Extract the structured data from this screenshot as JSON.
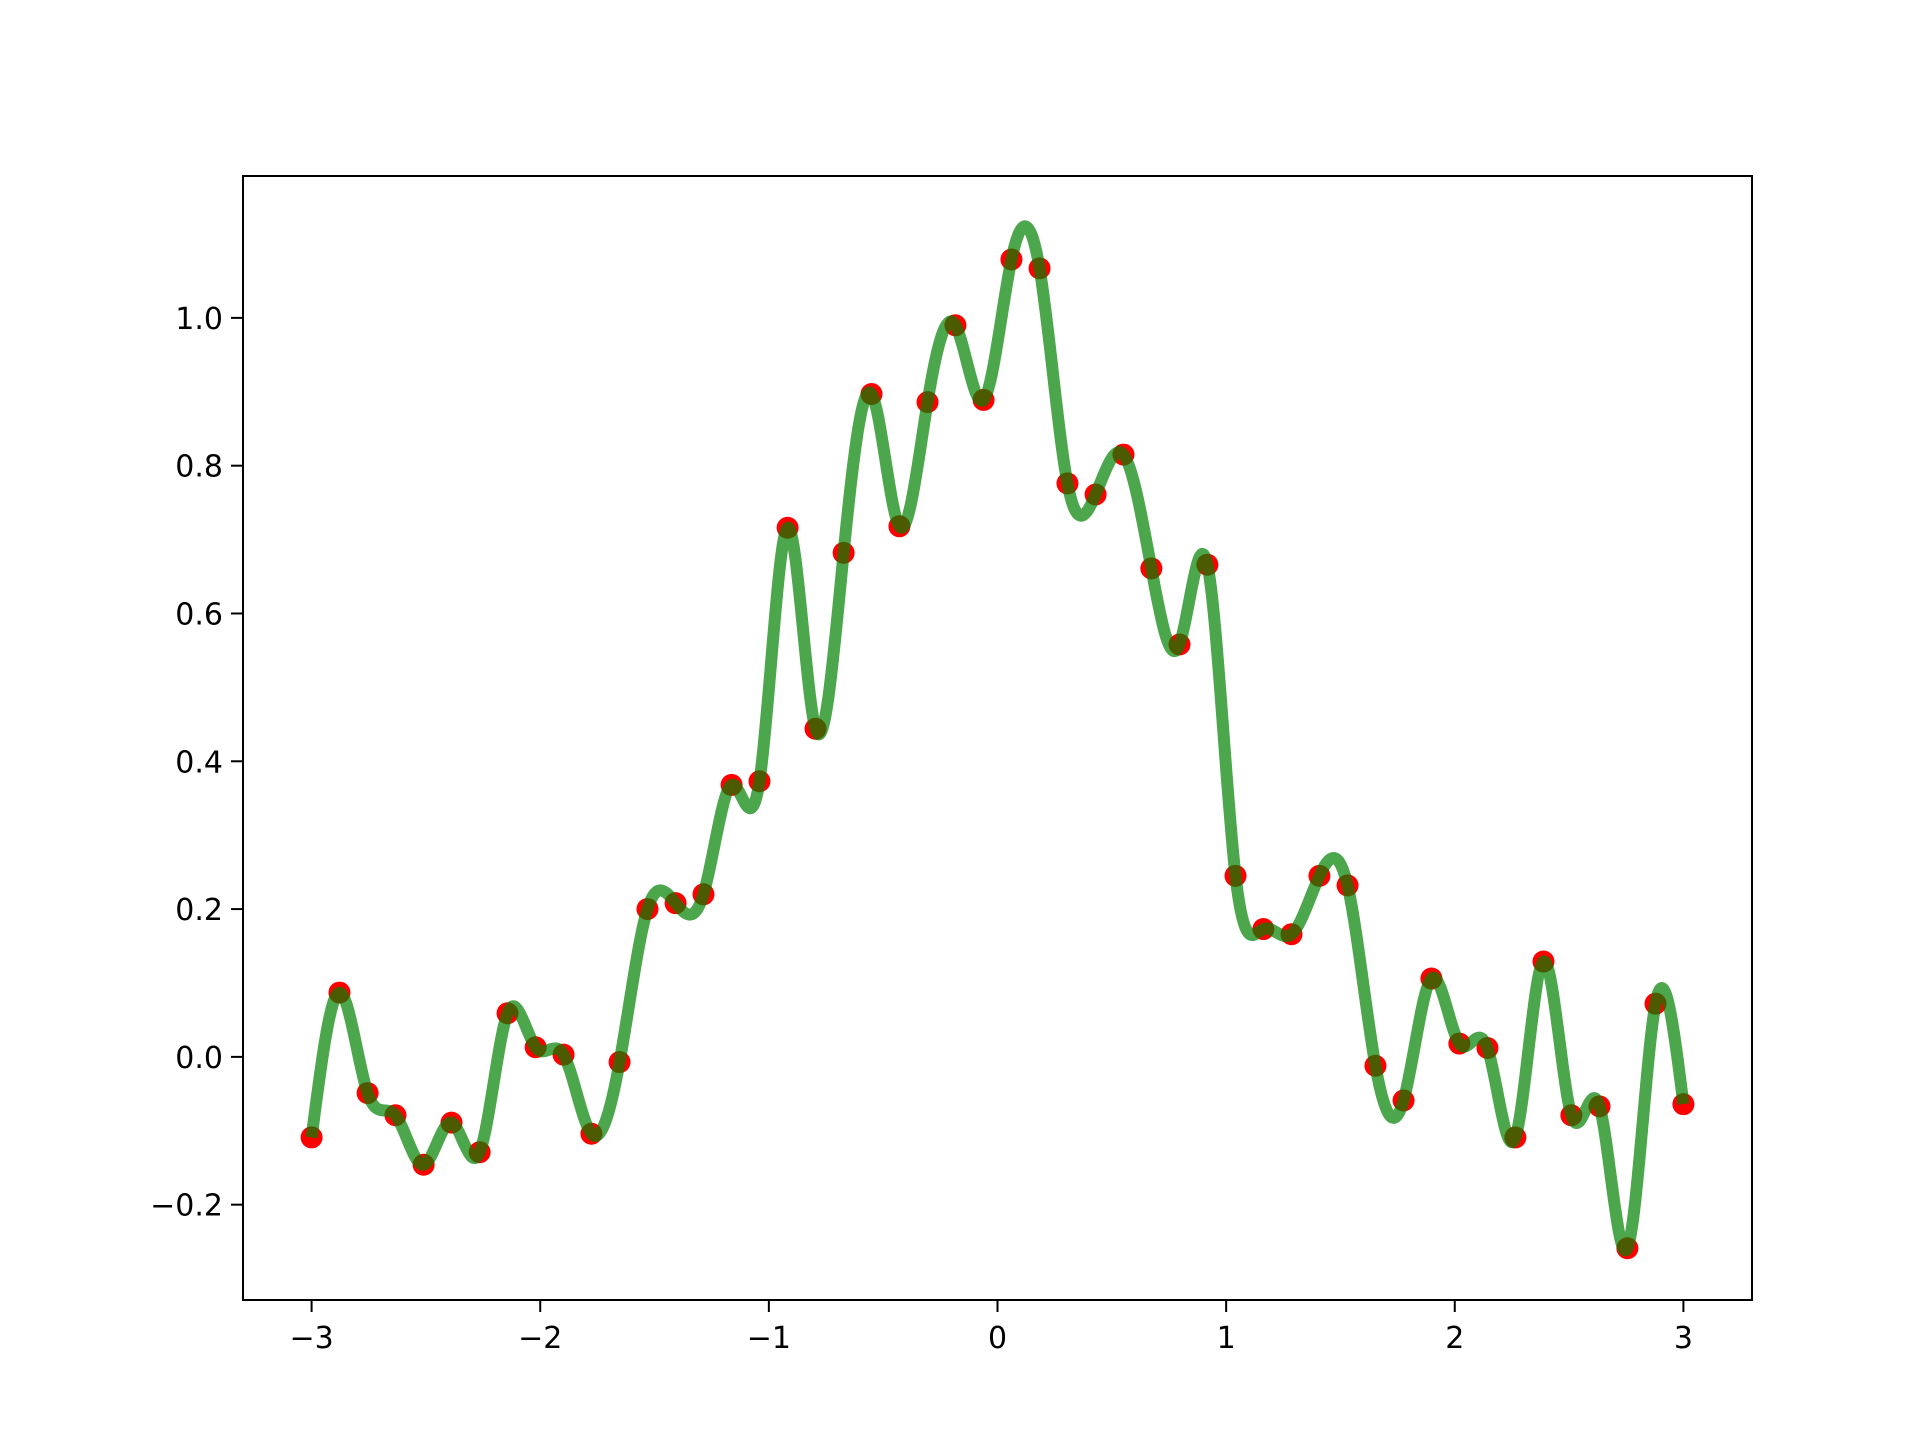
{
  "chart_data": {
    "type": "line",
    "interpolation": "spline",
    "x": [
      -3,
      -2.878,
      -2.755,
      -2.633,
      -2.51,
      -2.388,
      -2.265,
      -2.143,
      -2.02,
      -1.898,
      -1.776,
      -1.653,
      -1.531,
      -1.408,
      -1.286,
      -1.163,
      -1.041,
      -0.918,
      -0.796,
      -0.673,
      -0.551,
      -0.429,
      -0.306,
      -0.184,
      -0.061,
      0.061,
      0.184,
      0.306,
      0.429,
      0.551,
      0.673,
      0.796,
      0.918,
      1.041,
      1.163,
      1.286,
      1.408,
      1.531,
      1.653,
      1.776,
      1.898,
      2.02,
      2.143,
      2.265,
      2.388,
      2.51,
      2.633,
      2.755,
      2.878,
      3
    ],
    "series": [
      {
        "color": "#008000",
        "alpha": 0.7,
        "marker_color": "#ff0000",
        "values": [
          -0.109,
          0.087,
          -0.049,
          -0.079,
          -0.146,
          -0.089,
          -0.129,
          0.059,
          0.013,
          0.003,
          -0.104,
          -0.007,
          0.2,
          0.208,
          0.22,
          0.368,
          0.373,
          0.716,
          0.444,
          0.682,
          0.897,
          0.718,
          0.886,
          0.99,
          0.889,
          1.079,
          1.067,
          0.776,
          0.761,
          0.815,
          0.661,
          0.558,
          0.666,
          0.245,
          0.173,
          0.166,
          0.245,
          0.232,
          -0.012,
          -0.059,
          0.106,
          0.018,
          0.012,
          -0.109,
          0.129,
          -0.079,
          -0.067,
          -0.259,
          0.072,
          -0.064
        ]
      }
    ],
    "xlim": [
      -3.3,
      3.3
    ],
    "ylim": [
      -0.329,
      1.192
    ],
    "xticks": [
      {
        "value": -3,
        "label": "−3"
      },
      {
        "value": -2,
        "label": "−2"
      },
      {
        "value": -1,
        "label": "−1"
      },
      0,
      1,
      2,
      3
    ],
    "yticks": [
      {
        "value": -0.2,
        "label": "−0.2"
      },
      {
        "value": 0,
        "label": "0.0"
      },
      0.2,
      0.4,
      0.6,
      0.8,
      {
        "value": 1,
        "label": "1.0"
      }
    ],
    "grid": false
  }
}
